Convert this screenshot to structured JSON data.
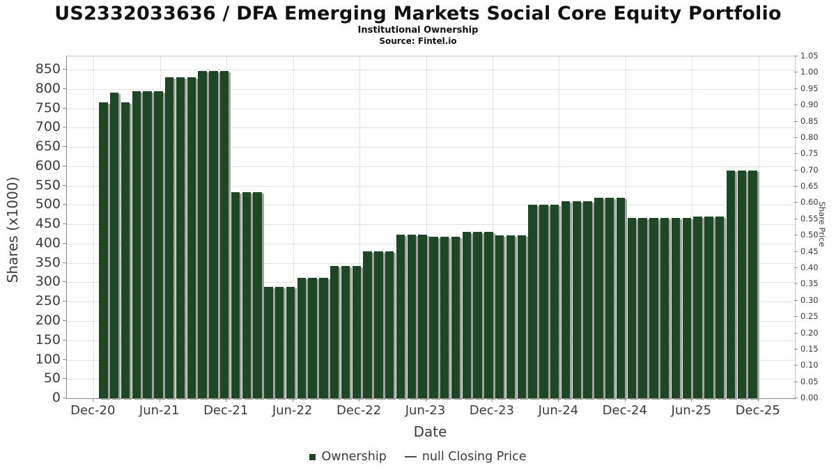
{
  "header": {
    "title": "US2332033636 / DFA Emerging Markets Social Core Equity Portfolio",
    "subtitle": "Institutional Ownership",
    "source": "Source: Fintel.io"
  },
  "chart_data": {
    "type": "bar",
    "title": "US2332033636 / DFA Emerging Markets Social Core Equity Portfolio",
    "xlabel": "Date",
    "ylabel_left": "Shares (x1000)",
    "ylabel_right": "Share Price",
    "grid": true,
    "legend_position": "bottom-center",
    "bar_color": "#1e4726",
    "months": [
      "Dec-20",
      "Jan-21",
      "Feb-21",
      "Mar-21",
      "Apr-21",
      "May-21",
      "Jun-21",
      "Jul-21",
      "Aug-21",
      "Sep-21",
      "Oct-21",
      "Nov-21",
      "Dec-21",
      "Jan-22",
      "Feb-22",
      "Mar-22",
      "Apr-22",
      "May-22",
      "Jun-22",
      "Jul-22",
      "Aug-22",
      "Sep-22",
      "Oct-22",
      "Nov-22",
      "Dec-22",
      "Jan-23",
      "Feb-23",
      "Mar-23",
      "Apr-23",
      "May-23",
      "Jun-23",
      "Jul-23",
      "Aug-23",
      "Sep-23",
      "Oct-23",
      "Nov-23",
      "Dec-23",
      "Jan-24",
      "Feb-24",
      "Mar-24",
      "Apr-24",
      "May-24",
      "Jun-24",
      "Jul-24",
      "Aug-24",
      "Sep-24",
      "Oct-24",
      "Nov-24",
      "Dec-24",
      "Jan-25",
      "Feb-25",
      "Mar-25",
      "Apr-25",
      "May-25",
      "Jun-25",
      "Jul-25",
      "Aug-25",
      "Sep-25",
      "Oct-25",
      "Nov-25"
    ],
    "values": [
      765,
      791,
      765,
      795,
      795,
      795,
      831,
      831,
      831,
      847,
      847,
      847,
      533,
      533,
      533,
      288,
      288,
      288,
      312,
      312,
      312,
      343,
      343,
      343,
      380,
      380,
      380,
      423,
      423,
      423,
      417,
      417,
      417,
      430,
      430,
      430,
      421,
      421,
      421,
      501,
      501,
      501,
      509,
      509,
      509,
      519,
      519,
      519,
      467,
      467,
      467,
      467,
      467,
      467,
      471,
      471,
      471,
      589,
      589,
      589
    ],
    "x_tick_labels": [
      "Dec-20",
      "Jun-21",
      "Dec-21",
      "Jun-22",
      "Dec-22",
      "Jun-23",
      "Dec-23",
      "Jun-24",
      "Dec-24",
      "Jun-25",
      "Dec-25"
    ],
    "left_tick_labels": [
      "0",
      "50",
      "100",
      "150",
      "200",
      "250",
      "300",
      "350",
      "400",
      "450",
      "500",
      "550",
      "600",
      "650",
      "700",
      "750",
      "800",
      "850"
    ],
    "left_tick_values": [
      0,
      50,
      100,
      150,
      200,
      250,
      300,
      350,
      400,
      450,
      500,
      550,
      600,
      650,
      700,
      750,
      800,
      850
    ],
    "right_tick_labels": [
      "0.00",
      "0.05",
      "0.10",
      "0.15",
      "0.20",
      "0.25",
      "0.30",
      "0.35",
      "0.40",
      "0.45",
      "0.50",
      "0.55",
      "0.60",
      "0.65",
      "0.70",
      "0.75",
      "0.80",
      "0.85",
      "0.90",
      "0.95",
      "1.00",
      "1.05"
    ],
    "ylim_left": [
      0,
      884
    ],
    "ylim_right": [
      0.0,
      1.05
    ],
    "legend": [
      {
        "label": "Ownership",
        "marker": "square",
        "color": "#1e4726"
      },
      {
        "label": "null Closing Price",
        "marker": "line",
        "color": "#4d4d4d"
      }
    ]
  },
  "colors": {
    "bar": "#1e4726",
    "bar_shadow": "#a2a2a2",
    "gridline": "#e2e2e2",
    "spine_dark": "#8a8a8a",
    "spine_light": "#c4c4c4",
    "text": "#3b3b3b",
    "title_text": "#111111"
  }
}
